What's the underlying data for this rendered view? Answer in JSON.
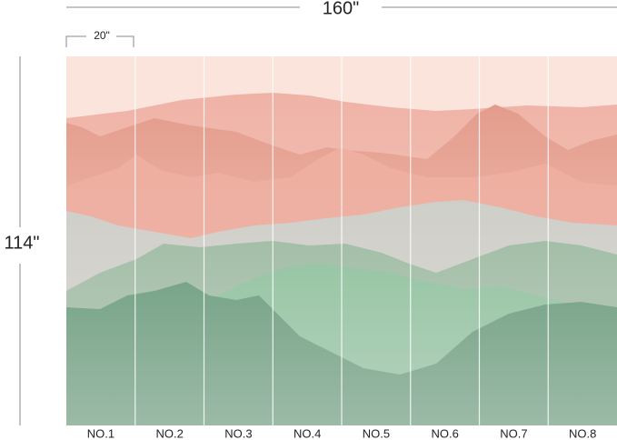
{
  "dimensions": {
    "width": "160\"",
    "height": "114\"",
    "panel_width": "20\""
  },
  "panels": [
    "NO.1",
    "NO.2",
    "NO.3",
    "NO.4",
    "NO.5",
    "NO.6",
    "NO.7",
    "NO.8"
  ]
}
